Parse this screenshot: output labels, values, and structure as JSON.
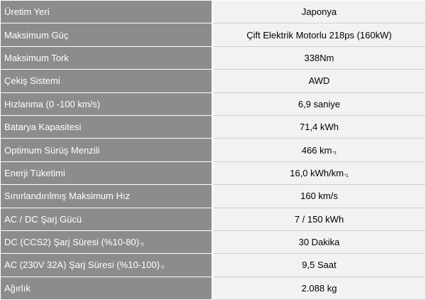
{
  "specs": [
    {
      "label": "Üretim Yeri",
      "label_note": "",
      "value": "Japonya",
      "value_note": ""
    },
    {
      "label": "Maksimum Güç",
      "label_note": "",
      "value": "Çift Elektrik Motorlu 218ps (160kW)",
      "value_note": ""
    },
    {
      "label": "Maksimum Tork",
      "label_note": "",
      "value": "338Nm",
      "value_note": ""
    },
    {
      "label": "Çekiş Sistemi",
      "label_note": "",
      "value": "AWD",
      "value_note": ""
    },
    {
      "label": "Hızlanma (0 -100 km/s)",
      "label_note": "",
      "value": "6,9 saniye",
      "value_note": ""
    },
    {
      "label": "Batarya Kapasitesi",
      "label_note": "",
      "value": "71,4 kWh",
      "value_note": ""
    },
    {
      "label": "Optimum Sürüş Menzili",
      "label_note": "",
      "value": "466 km",
      "value_note": "*1"
    },
    {
      "label": "Enerji Tüketimi",
      "label_note": "",
      "value": "16,0 kWh/km",
      "value_note": "*1"
    },
    {
      "label": "Sınırlandırılmış Maksimum Hız",
      "label_note": "",
      "value": "160 km/s",
      "value_note": ""
    },
    {
      "label": "AC / DC Şarj Gücü",
      "label_note": "",
      "value": "7 / 150 kWh",
      "value_note": ""
    },
    {
      "label": "DC (CCS2) Şarj Süresi (%10-80)",
      "label_note": "*2",
      "value": "30 Dakika",
      "value_note": ""
    },
    {
      "label": "AC (230V 32A) Şarj Süresi (%10-100)",
      "label_note": "*2",
      "value": "9,5 Saat",
      "value_note": ""
    },
    {
      "label": "Ağırlık",
      "label_note": "",
      "value": "2.088 kg",
      "value_note": ""
    }
  ],
  "colors": {
    "label_bg": "#8c8c8c",
    "value_bg": "#f2f2f2"
  }
}
